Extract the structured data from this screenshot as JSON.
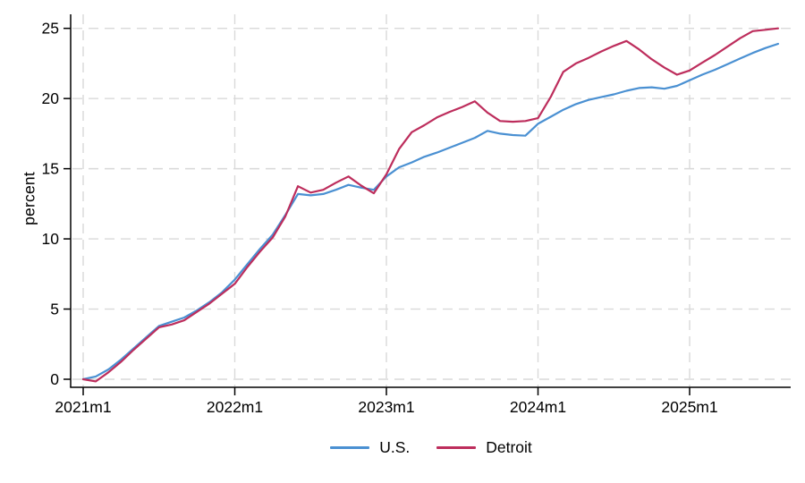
{
  "chart_data": {
    "type": "line",
    "title": "",
    "xlabel": "",
    "ylabel": "percent",
    "ylim": [
      0,
      25
    ],
    "y_ticks": [
      0,
      5,
      10,
      15,
      20,
      25
    ],
    "x_tick_labels": [
      "2021m1",
      "2022m1",
      "2023m1",
      "2024m1",
      "2025m1"
    ],
    "x_tick_indices": [
      0,
      12,
      24,
      36,
      48
    ],
    "grid": true,
    "grid_style": "dashed",
    "legend_position": "bottom-center",
    "x": [
      "2021m1",
      "2021m2",
      "2021m3",
      "2021m4",
      "2021m5",
      "2021m6",
      "2021m7",
      "2021m8",
      "2021m9",
      "2021m10",
      "2021m11",
      "2021m12",
      "2022m1",
      "2022m2",
      "2022m3",
      "2022m4",
      "2022m5",
      "2022m6",
      "2022m7",
      "2022m8",
      "2022m9",
      "2022m10",
      "2022m11",
      "2022m12",
      "2023m1",
      "2023m2",
      "2023m3",
      "2023m4",
      "2023m5",
      "2023m6",
      "2023m7",
      "2023m8",
      "2023m9",
      "2023m10",
      "2023m11",
      "2023m12",
      "2024m1",
      "2024m2",
      "2024m3",
      "2024m4",
      "2024m5",
      "2024m6",
      "2024m7",
      "2024m8",
      "2024m9",
      "2024m10",
      "2024m11",
      "2024m12",
      "2025m1",
      "2025m2",
      "2025m3",
      "2025m4",
      "2025m5",
      "2025m6",
      "2025m7",
      "2025m8"
    ],
    "series": [
      {
        "name": "U.S.",
        "color": "#4a90d2",
        "values": [
          0,
          0.2,
          0.7,
          1.4,
          2.2,
          3.0,
          3.8,
          4.1,
          4.4,
          4.9,
          5.5,
          6.2,
          7.1,
          8.2,
          9.3,
          10.3,
          11.7,
          13.2,
          13.1,
          13.2,
          13.5,
          13.85,
          13.65,
          13.5,
          14.45,
          15.1,
          15.45,
          15.85,
          16.15,
          16.5,
          16.85,
          17.2,
          17.7,
          17.5,
          17.4,
          17.35,
          18.2,
          18.7,
          19.2,
          19.6,
          19.9,
          20.1,
          20.3,
          20.55,
          20.75,
          20.8,
          20.7,
          20.9,
          21.3,
          21.7,
          22.05,
          22.45,
          22.85,
          23.25,
          23.6,
          23.9
        ]
      },
      {
        "name": "Detroit",
        "color": "#bd2d5c",
        "values": [
          0,
          -0.15,
          0.5,
          1.25,
          2.1,
          2.9,
          3.7,
          3.9,
          4.2,
          4.8,
          5.4,
          6.1,
          6.8,
          8.0,
          9.1,
          10.1,
          11.6,
          13.75,
          13.3,
          13.5,
          14.0,
          14.45,
          13.8,
          13.25,
          14.6,
          16.4,
          17.6,
          18.1,
          18.65,
          19.05,
          19.4,
          19.8,
          19.0,
          18.4,
          18.35,
          18.4,
          18.6,
          20.1,
          21.9,
          22.5,
          22.9,
          23.35,
          23.75,
          24.1,
          23.5,
          22.8,
          22.2,
          21.7,
          22.0,
          22.55,
          23.1,
          23.7,
          24.3,
          24.8,
          24.9,
          25.0
        ]
      }
    ]
  },
  "colors": {
    "background": "#ffffff",
    "grid": "#d9d9d9",
    "axis": "#000000",
    "text": "#000000"
  }
}
